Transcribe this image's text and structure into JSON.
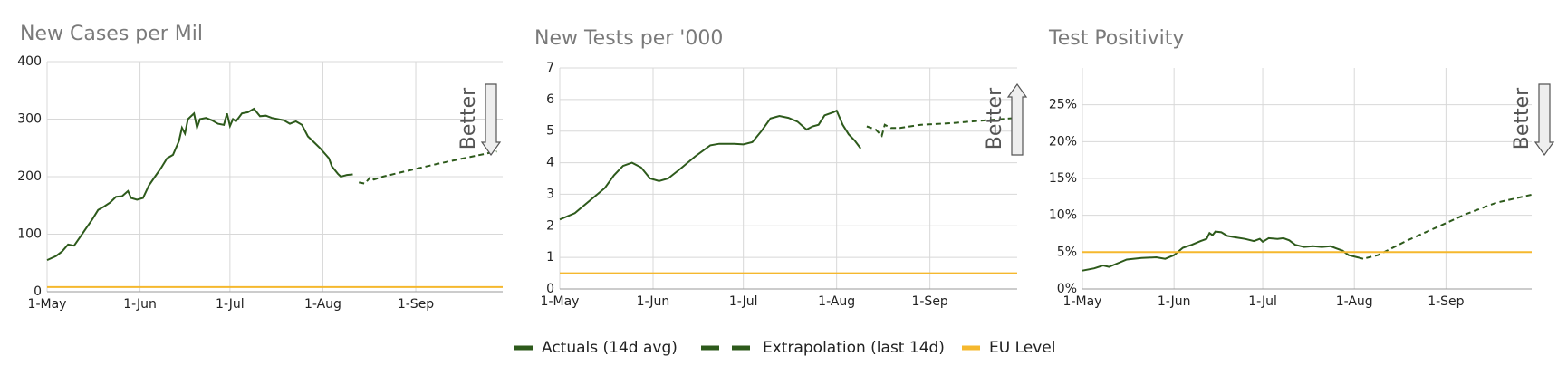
{
  "chart_data": [
    {
      "type": "line",
      "title": "New Cases per Mil",
      "xlim": [
        0,
        152
      ],
      "xticks": [
        {
          "value": 0,
          "label": "1-May"
        },
        {
          "value": 31,
          "label": "1-Jun"
        },
        {
          "value": 61,
          "label": "1-Jul"
        },
        {
          "value": 92,
          "label": "1-Aug"
        },
        {
          "value": 123,
          "label": "1-Sep"
        }
      ],
      "ylim": [
        0,
        400
      ],
      "yticks": [
        0,
        100,
        200,
        300,
        400
      ],
      "grid": true,
      "annotation": {
        "text": "Better",
        "direction": "down"
      },
      "series": [
        {
          "name": "Actuals (14d avg)",
          "color": "#2d5a1b",
          "x": [
            0,
            3,
            5,
            7,
            9,
            11,
            13,
            15,
            17,
            19,
            21,
            23,
            25,
            27,
            28,
            30,
            32,
            34,
            36,
            38,
            40,
            42,
            44,
            45,
            46,
            47,
            49,
            50,
            51,
            53,
            55,
            57,
            59,
            60,
            61,
            62,
            63,
            65,
            67,
            69,
            71,
            73,
            75,
            77,
            79,
            81,
            83,
            85,
            87,
            89,
            91,
            93,
            94,
            95,
            97,
            98,
            100,
            102
          ],
          "values": [
            55,
            62,
            70,
            82,
            80,
            95,
            110,
            125,
            142,
            148,
            155,
            165,
            166,
            175,
            163,
            160,
            163,
            185,
            200,
            215,
            232,
            238,
            262,
            285,
            275,
            300,
            310,
            285,
            300,
            302,
            298,
            292,
            290,
            310,
            288,
            300,
            296,
            310,
            312,
            318,
            305,
            306,
            302,
            300,
            298,
            292,
            296,
            290,
            270,
            260,
            250,
            238,
            232,
            218,
            205,
            200,
            203,
            204
          ]
        },
        {
          "name": "Extrapolation (last 14d)",
          "color": "#2d5a1b",
          "dash": true,
          "x": [
            104,
            106,
            108,
            109,
            112,
            120,
            130,
            140,
            150
          ],
          "values": [
            190,
            188,
            200,
            195,
            200,
            210,
            222,
            233,
            244
          ]
        },
        {
          "name": "EU Level",
          "color": "#f5b82e",
          "x": [
            0,
            152
          ],
          "values": [
            8,
            8
          ]
        }
      ]
    },
    {
      "type": "line",
      "title": "New Tests per '000",
      "xlim": [
        0,
        152
      ],
      "xticks": [
        {
          "value": 0,
          "label": "1-May"
        },
        {
          "value": 31,
          "label": "1-Jun"
        },
        {
          "value": 61,
          "label": "1-Jul"
        },
        {
          "value": 92,
          "label": "1-Aug"
        },
        {
          "value": 123,
          "label": "1-Sep"
        }
      ],
      "ylim": [
        0,
        7
      ],
      "yticks": [
        0,
        1,
        2,
        3,
        4,
        5,
        6,
        7
      ],
      "grid": true,
      "annotation": {
        "text": "Better",
        "direction": "up"
      },
      "series": [
        {
          "color": "#2d5a1b",
          "x": [
            0,
            5,
            10,
            15,
            18,
            21,
            24,
            27,
            30,
            33,
            36,
            40,
            45,
            50,
            53,
            58,
            61,
            64,
            67,
            70,
            73,
            76,
            79,
            82,
            84,
            86,
            88,
            91,
            92,
            94,
            96,
            98,
            100
          ],
          "values": [
            2.2,
            2.4,
            2.8,
            3.2,
            3.6,
            3.9,
            4.0,
            3.85,
            3.5,
            3.42,
            3.5,
            3.8,
            4.2,
            4.55,
            4.6,
            4.6,
            4.58,
            4.65,
            5.0,
            5.4,
            5.48,
            5.42,
            5.3,
            5.05,
            5.15,
            5.2,
            5.5,
            5.6,
            5.65,
            5.2,
            4.9,
            4.7,
            4.45
          ]
        },
        {
          "color": "#2d5a1b",
          "dash": true,
          "x": [
            102,
            105,
            107,
            108,
            110,
            113,
            120,
            130,
            140,
            152
          ],
          "values": [
            5.15,
            5.05,
            4.85,
            5.2,
            5.1,
            5.1,
            5.2,
            5.25,
            5.33,
            5.42
          ]
        },
        {
          "color": "#f5b82e",
          "x": [
            0,
            152
          ],
          "values": [
            0.5,
            0.5
          ]
        }
      ]
    },
    {
      "type": "line",
      "title": "Test Positivity",
      "xlim": [
        0,
        152
      ],
      "xticks": [
        {
          "value": 0,
          "label": "1-May"
        },
        {
          "value": 31,
          "label": "1-Jun"
        },
        {
          "value": 61,
          "label": "1-Jul"
        },
        {
          "value": 92,
          "label": "1-Aug"
        },
        {
          "value": 123,
          "label": "1-Sep"
        }
      ],
      "ylim": [
        0,
        30
      ],
      "yticks": [
        {
          "value": 0,
          "label": "0%"
        },
        {
          "value": 5,
          "label": "5%"
        },
        {
          "value": 10,
          "label": "10%"
        },
        {
          "value": 15,
          "label": "15%"
        },
        {
          "value": 20,
          "label": "20%"
        },
        {
          "value": 25,
          "label": "25%"
        }
      ],
      "grid": true,
      "annotation": {
        "text": "Better",
        "direction": "down"
      },
      "series": [
        {
          "color": "#2d5a1b",
          "x": [
            0,
            4,
            7,
            9,
            12,
            15,
            20,
            25,
            28,
            31,
            34,
            37,
            40,
            42,
            43,
            44,
            45,
            47,
            49,
            52,
            55,
            58,
            60,
            61,
            63,
            66,
            68,
            70,
            72,
            75,
            78,
            81,
            84,
            86,
            88,
            90,
            93,
            95
          ],
          "values": [
            2.5,
            2.8,
            3.2,
            3.0,
            3.5,
            4.0,
            4.2,
            4.3,
            4.1,
            4.6,
            5.6,
            6.0,
            6.5,
            6.8,
            7.6,
            7.3,
            7.8,
            7.7,
            7.2,
            7.0,
            6.8,
            6.5,
            6.8,
            6.4,
            6.9,
            6.8,
            6.9,
            6.6,
            6.0,
            5.7,
            5.8,
            5.7,
            5.8,
            5.5,
            5.2,
            4.6,
            4.3,
            4.1
          ]
        },
        {
          "color": "#2d5a1b",
          "dash": true,
          "x": [
            96,
            100,
            110,
            120,
            130,
            140,
            152
          ],
          "values": [
            4.2,
            4.6,
            6.6,
            8.4,
            10.2,
            11.7,
            12.8
          ]
        },
        {
          "color": "#f5b82e",
          "x": [
            0,
            152
          ],
          "values": [
            5,
            5
          ]
        }
      ]
    }
  ]
}
